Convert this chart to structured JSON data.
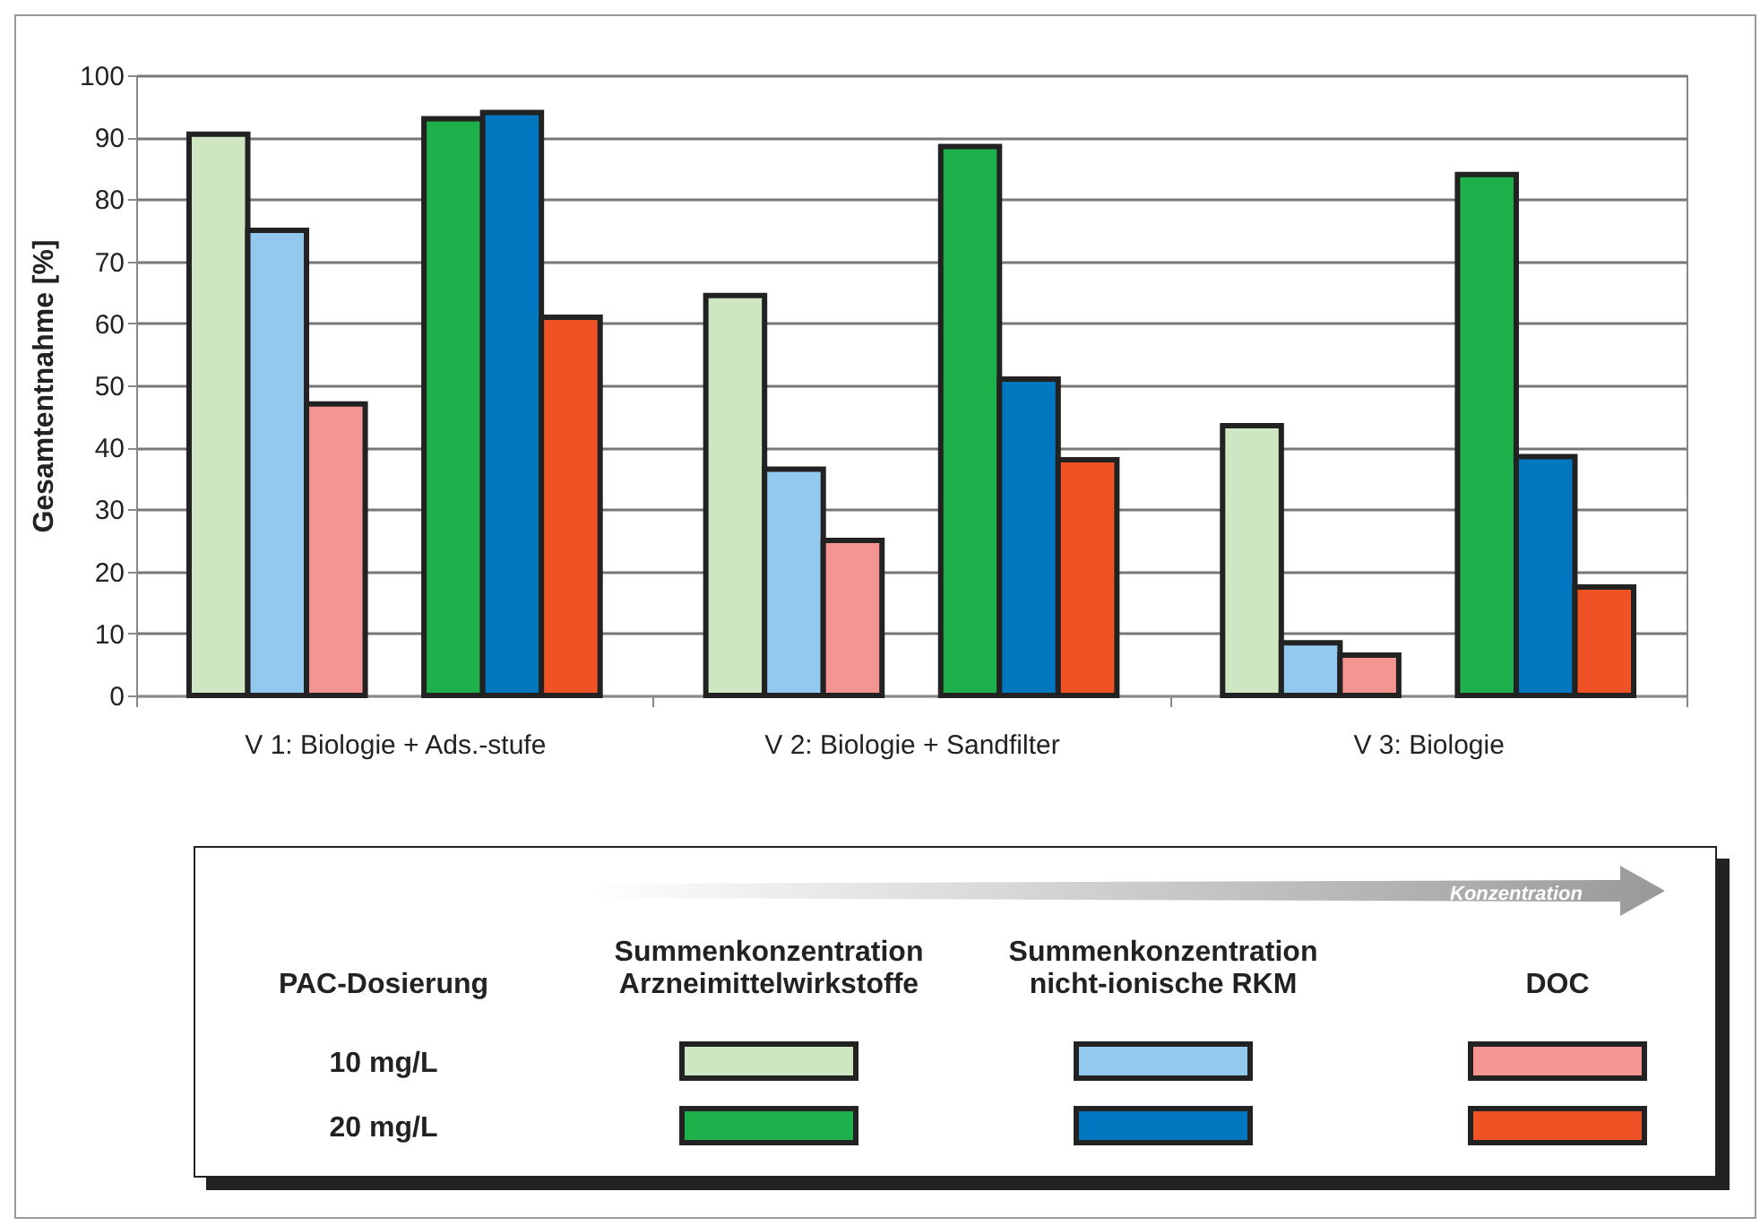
{
  "chart_data": {
    "type": "bar",
    "ylabel": "Gesamtentnahme [%]",
    "categories": [
      "V 1: Biologie + Ads.-stufe",
      "V 2: Biologie + Sandfilter",
      "V 3: Biologie"
    ],
    "series": [
      {
        "color": "#cfe6c2",
        "values": [
          90.5,
          64.5,
          43.5
        ]
      },
      {
        "color": "#93c9ee",
        "values": [
          75,
          36.5,
          8.5
        ]
      },
      {
        "color": "#f59591",
        "values": [
          47,
          25,
          6.5
        ]
      },
      {
        "color": "#1eb04a",
        "values": [
          93,
          88.5,
          84
        ]
      },
      {
        "color": "#0077bf",
        "values": [
          94,
          51,
          38.5
        ]
      },
      {
        "color": "#ef5325",
        "values": [
          61,
          38,
          17.5
        ]
      }
    ],
    "ylim": [
      0,
      100
    ],
    "yticks": [
      0,
      10,
      20,
      30,
      40,
      50,
      60,
      70,
      80,
      90,
      100
    ],
    "grid": "y",
    "annotations": [
      "Konzentration",
      "PAC-Dosierung",
      "10 mg/L",
      "20 mg/L",
      "Summenkonzentration Arzneimittelwirkstoffe",
      "Summenkonzentration nicht-ionische RKM",
      "DOC"
    ]
  }
}
